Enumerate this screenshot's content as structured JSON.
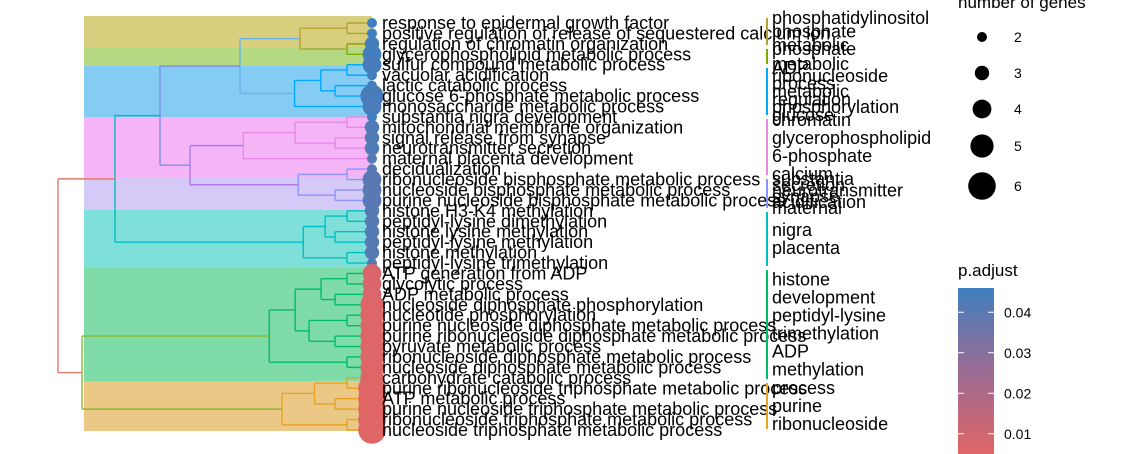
{
  "chart_data": {
    "type": "treeplot",
    "terms": [
      {
        "label": "response to epidermal growth factor",
        "count": 2,
        "p_adjust": 0.046,
        "cluster": 0
      },
      {
        "label": "positive regulation of release of sequestered calcium ion",
        "count": 2,
        "p_adjust": 0.046,
        "cluster": 0
      },
      {
        "label": "regulation of chromatin organization",
        "count": 3,
        "p_adjust": 0.045,
        "cluster": 1
      },
      {
        "label": "glycerophospholipid metabolic process",
        "count": 4,
        "p_adjust": 0.045,
        "cluster": 1
      },
      {
        "label": "sulfur compound metabolic process",
        "count": 4,
        "p_adjust": 0.044,
        "cluster": 2
      },
      {
        "label": "vacuolar acidification",
        "count": 2,
        "p_adjust": 0.045,
        "cluster": 2
      },
      {
        "label": "lactic catabolic process",
        "count": 2,
        "p_adjust": 0.046,
        "cluster": 2
      },
      {
        "label": "glucose 6-phosphate metabolic process",
        "count": 5,
        "p_adjust": 0.044,
        "cluster": 2
      },
      {
        "label": "monosaccharide metabolic process",
        "count": 4,
        "p_adjust": 0.043,
        "cluster": 2
      },
      {
        "label": "substantia nigra development",
        "count": 2,
        "p_adjust": 0.046,
        "cluster": 3
      },
      {
        "label": "mitochondrial membrane organization",
        "count": 3,
        "p_adjust": 0.042,
        "cluster": 3
      },
      {
        "label": "signal release from synapse",
        "count": 3,
        "p_adjust": 0.042,
        "cluster": 3
      },
      {
        "label": "neurotransmitter secretion",
        "count": 3,
        "p_adjust": 0.042,
        "cluster": 3
      },
      {
        "label": "maternal placenta development",
        "count": 2,
        "p_adjust": 0.041,
        "cluster": 3
      },
      {
        "label": "decidualization",
        "count": 2,
        "p_adjust": 0.041,
        "cluster": 4
      },
      {
        "label": "ribonucleoside bisphosphate metabolic process",
        "count": 4,
        "p_adjust": 0.04,
        "cluster": 4
      },
      {
        "label": "nucleoside bisphosphate metabolic process",
        "count": 4,
        "p_adjust": 0.04,
        "cluster": 4
      },
      {
        "label": "purine nucleoside bisphosphate metabolic process",
        "count": 4,
        "p_adjust": 0.04,
        "cluster": 4
      },
      {
        "label": "histone H3-K4 methylation",
        "count": 3,
        "p_adjust": 0.041,
        "cluster": 5
      },
      {
        "label": "peptidyl-lysine dimethylation",
        "count": 3,
        "p_adjust": 0.041,
        "cluster": 5
      },
      {
        "label": "histone lysine methylation",
        "count": 3,
        "p_adjust": 0.041,
        "cluster": 5
      },
      {
        "label": "peptidyl-lysine methylation",
        "count": 3,
        "p_adjust": 0.041,
        "cluster": 5
      },
      {
        "label": "histone methylation",
        "count": 3,
        "p_adjust": 0.041,
        "cluster": 5
      },
      {
        "label": "peptidyl-lysine trimethylation",
        "count": 2,
        "p_adjust": 0.041,
        "cluster": 5
      },
      {
        "label": "ATP generation from ADP",
        "count": 4,
        "p_adjust": 0.007,
        "cluster": 6
      },
      {
        "label": "glycolytic process",
        "count": 4,
        "p_adjust": 0.007,
        "cluster": 6
      },
      {
        "label": "ADP metabolic process",
        "count": 4,
        "p_adjust": 0.007,
        "cluster": 6
      },
      {
        "label": "nucleoside diphosphate phosphorylation",
        "count": 5,
        "p_adjust": 0.006,
        "cluster": 6
      },
      {
        "label": "nucleotide phosphorylation",
        "count": 5,
        "p_adjust": 0.006,
        "cluster": 6
      },
      {
        "label": "purine nucleoside diphosphate metabolic process",
        "count": 5,
        "p_adjust": 0.006,
        "cluster": 6
      },
      {
        "label": "purine ribonucleoside diphosphate metabolic process",
        "count": 5,
        "p_adjust": 0.006,
        "cluster": 6
      },
      {
        "label": "pyruvate metabolic process",
        "count": 5,
        "p_adjust": 0.006,
        "cluster": 6
      },
      {
        "label": "ribonucleoside diphosphate metabolic process",
        "count": 5,
        "p_adjust": 0.006,
        "cluster": 6
      },
      {
        "label": "nucleoside diphosphate metabolic process",
        "count": 5,
        "p_adjust": 0.006,
        "cluster": 6
      },
      {
        "label": "carbohydrate catabolic process",
        "count": 5,
        "p_adjust": 0.006,
        "cluster": 7
      },
      {
        "label": "purine ribonucleoside triphosphate metabolic process",
        "count": 6,
        "p_adjust": 0.005,
        "cluster": 7
      },
      {
        "label": "ATP metabolic process",
        "count": 6,
        "p_adjust": 0.005,
        "cluster": 7
      },
      {
        "label": "purine nucleoside triphosphate metabolic process",
        "count": 6,
        "p_adjust": 0.005,
        "cluster": 7
      },
      {
        "label": "ribonucleoside triphosphate metabolic process",
        "count": 6,
        "p_adjust": 0.005,
        "cluster": 7
      },
      {
        "label": "nucleoside triphosphate metabolic process",
        "count": 6,
        "p_adjust": 0.005,
        "cluster": 7
      }
    ],
    "clusters": [
      {
        "color": "#d9cf7f",
        "branch": "#b5a22e",
        "keywords": [
          "phosphatidylinositol",
          "phosphate",
          "metabolic"
        ]
      },
      {
        "color": "#b4d982",
        "branch": "#7cae00",
        "keywords": [
          "phosphate",
          "metabolic"
        ]
      },
      {
        "color": "#85ccf5",
        "branch": "#00a9ff",
        "keywords": [
          "ADP",
          "ribonucleoside",
          "process",
          "metabolic",
          "regulation",
          "phosphorylation",
          "glucose"
        ]
      },
      {
        "color": "#f5b4f5",
        "branch": "#e68ae6",
        "keywords": [
          "chromatin",
          "glycerophospholipid",
          "6-phosphate",
          "calcium"
        ]
      },
      {
        "color": "#d4c9f7",
        "branch": "#8c94ff",
        "keywords": [
          "substantia",
          "secretion",
          "neurotransmitter",
          "synapse",
          "acidification",
          "maternal"
        ]
      },
      {
        "color": "#7fe0d9",
        "branch": "#00bfc4",
        "keywords": [
          "nigra",
          "placenta"
        ]
      },
      {
        "color": "#7fdca8",
        "branch": "#00be67",
        "keywords": [
          "histone",
          "development",
          "peptidyl-lysine",
          "trimethylation",
          "ADP",
          "methylation"
        ]
      },
      {
        "color": "#ecc887",
        "branch": "#e7a321",
        "keywords": [
          "process",
          "purine",
          "ribonucleoside"
        ]
      }
    ],
    "legend_size": {
      "title": "number of genes",
      "values": [
        2,
        3,
        4,
        5,
        6
      ]
    },
    "legend_color": {
      "title": "p.adjust",
      "ticks": [
        0.01,
        0.02,
        0.03,
        0.04
      ],
      "range": [
        0.005,
        0.046
      ],
      "low_color": "#e06666",
      "high_color": "#3f7fbf"
    }
  }
}
